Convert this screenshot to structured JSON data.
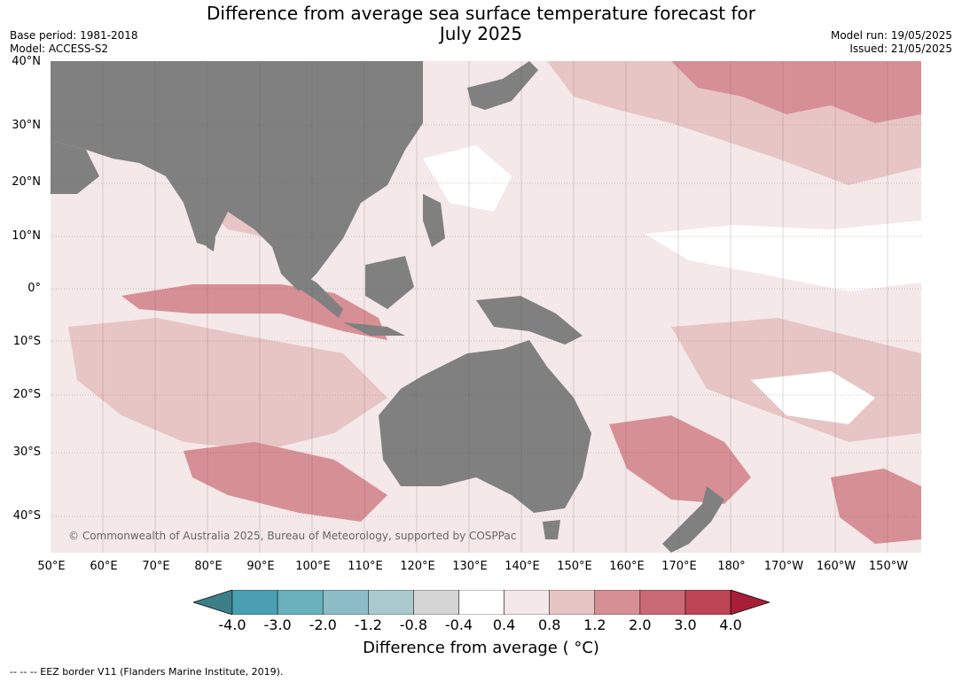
{
  "header": {
    "title_line1": "Difference from average sea surface temperature forecast for",
    "title_line2": "July 2025",
    "base_period": "Base period: 1981-2018",
    "model": "Model: ACCESS-S2",
    "model_run": "Model run: 19/05/2025",
    "issued": "Issued: 21/05/2025"
  },
  "map": {
    "lat_labels": [
      "40°N",
      "30°N",
      "20°N",
      "10°N",
      "0°",
      "10°S",
      "20°S",
      "30°S",
      "40°S"
    ],
    "lon_labels": [
      "50°E",
      "60°E",
      "70°E",
      "80°E",
      "90°E",
      "100°E",
      "110°E",
      "120°E",
      "130°E",
      "140°E",
      "150°E",
      "160°E",
      "170°E",
      "180°",
      "170°W",
      "160°W",
      "150°W"
    ],
    "copyright": "© Commonwealth of Australia 2025, Bureau of Meteorology, supported by COSPPac",
    "land_color": "#808080"
  },
  "colorbar": {
    "labels": [
      "-4.0",
      "-3.0",
      "-2.0",
      "-1.2",
      "-0.8",
      "-0.4",
      "0.4",
      "0.8",
      "1.2",
      "2.0",
      "3.0",
      "4.0"
    ],
    "colors": [
      "#3d7f88",
      "#4aa0b2",
      "#6ab0bd",
      "#8cbcc6",
      "#a9c9cd",
      "#d5d5d5",
      "#ffffff",
      "#f4e8e8",
      "#e7c5c4",
      "#d78f96",
      "#c96a75",
      "#bd4555",
      "#a81e36"
    ],
    "title": "Difference from average ( °C)"
  },
  "footer": {
    "note": "--  --  -- EEZ border V11 (Flanders Marine Institute, 2019)."
  }
}
